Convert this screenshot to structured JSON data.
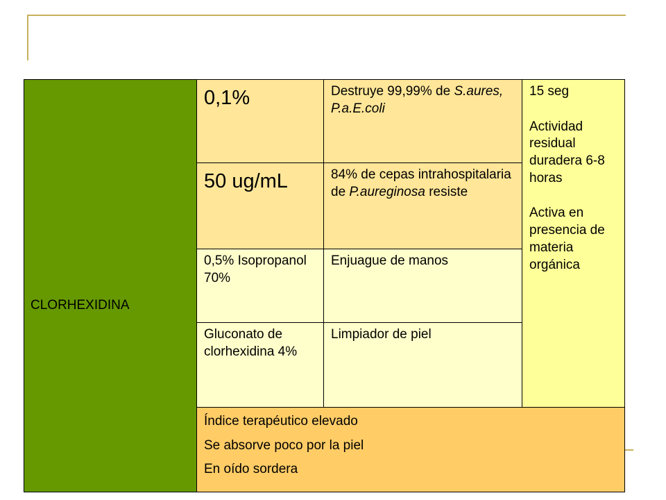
{
  "slide": {
    "drug_name": "CLORHEXIDINA",
    "rows": [
      {
        "concentration": "0,1%",
        "description_prefix": "Destruye 99,99% de ",
        "description_italic": "S.aures, P.a.E.coli",
        "description_suffix": ""
      },
      {
        "concentration": "50 ug/mL",
        "description_prefix": "84% de cepas intrahospitalaria de ",
        "description_italic": "P.aureginosa",
        "description_suffix": " resiste"
      },
      {
        "concentration": "0,5% Isopropanol 70%",
        "description_prefix": "Enjuague de manos",
        "description_italic": "",
        "description_suffix": ""
      },
      {
        "concentration": "Gluconato de clorhexidina 4%",
        "description_prefix": "Limpiador de piel",
        "description_italic": "",
        "description_suffix": ""
      }
    ],
    "properties": [
      "15 seg",
      "Actividad residual duradera 6-8 horas",
      "Activa en presencia de materia orgánica"
    ],
    "footer_lines": [
      "Índice terapéutico elevado",
      "Se absorve poco por la piel",
      "En oído sordera"
    ]
  },
  "colors": {
    "drug_cell": "#669900",
    "concentration_cells": "#ffe699",
    "lower_cells": "#ffffcc",
    "properties_cell": "#ffff99",
    "footer_cell": "#ffcc66",
    "accent_lines": "#c8b15a"
  }
}
